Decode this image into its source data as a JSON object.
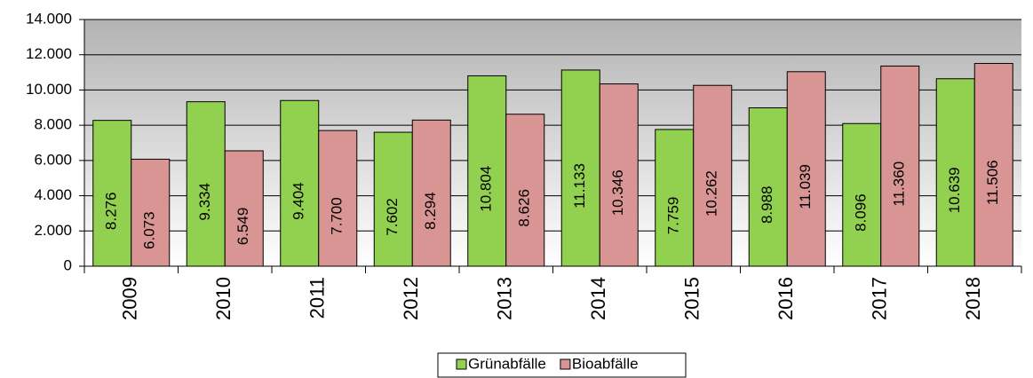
{
  "chart_data": {
    "type": "bar",
    "categories": [
      "2009",
      "2010",
      "2011",
      "2012",
      "2013",
      "2014",
      "2015",
      "2016",
      "2017",
      "2018"
    ],
    "series": [
      {
        "name": "Grünabfälle",
        "color": "#92d050",
        "values": [
          8276,
          9334,
          9404,
          7602,
          10804,
          11133,
          7759,
          8988,
          8096,
          10639
        ],
        "value_labels": [
          "8.276",
          "9.334",
          "9.404",
          "7.602",
          "10.804",
          "11.133",
          "7.759",
          "8.988",
          "8.096",
          "10.639"
        ]
      },
      {
        "name": "Bioabfälle",
        "color": "#d99594",
        "values": [
          6073,
          6549,
          7700,
          8294,
          8626,
          10346,
          10262,
          11039,
          11360,
          11506
        ],
        "value_labels": [
          "6.073",
          "6.549",
          "7.700",
          "8.294",
          "8.626",
          "10.346",
          "10.262",
          "11.039",
          "11.360",
          "11.506"
        ]
      }
    ],
    "ylim": [
      0,
      14000
    ],
    "yticks": [
      0,
      {
        "value": 2000,
        "label": "2.000"
      },
      {
        "value": 4000,
        "label": "4.000"
      },
      {
        "value": 6000,
        "label": "6.000"
      },
      {
        "value": 8000,
        "label": "8.000"
      },
      {
        "value": 10000,
        "label": "10.000"
      },
      {
        "value": 12000,
        "label": "12.000"
      },
      {
        "value": 14000,
        "label": "14.000"
      }
    ],
    "grid": true,
    "legend": "bottom"
  }
}
